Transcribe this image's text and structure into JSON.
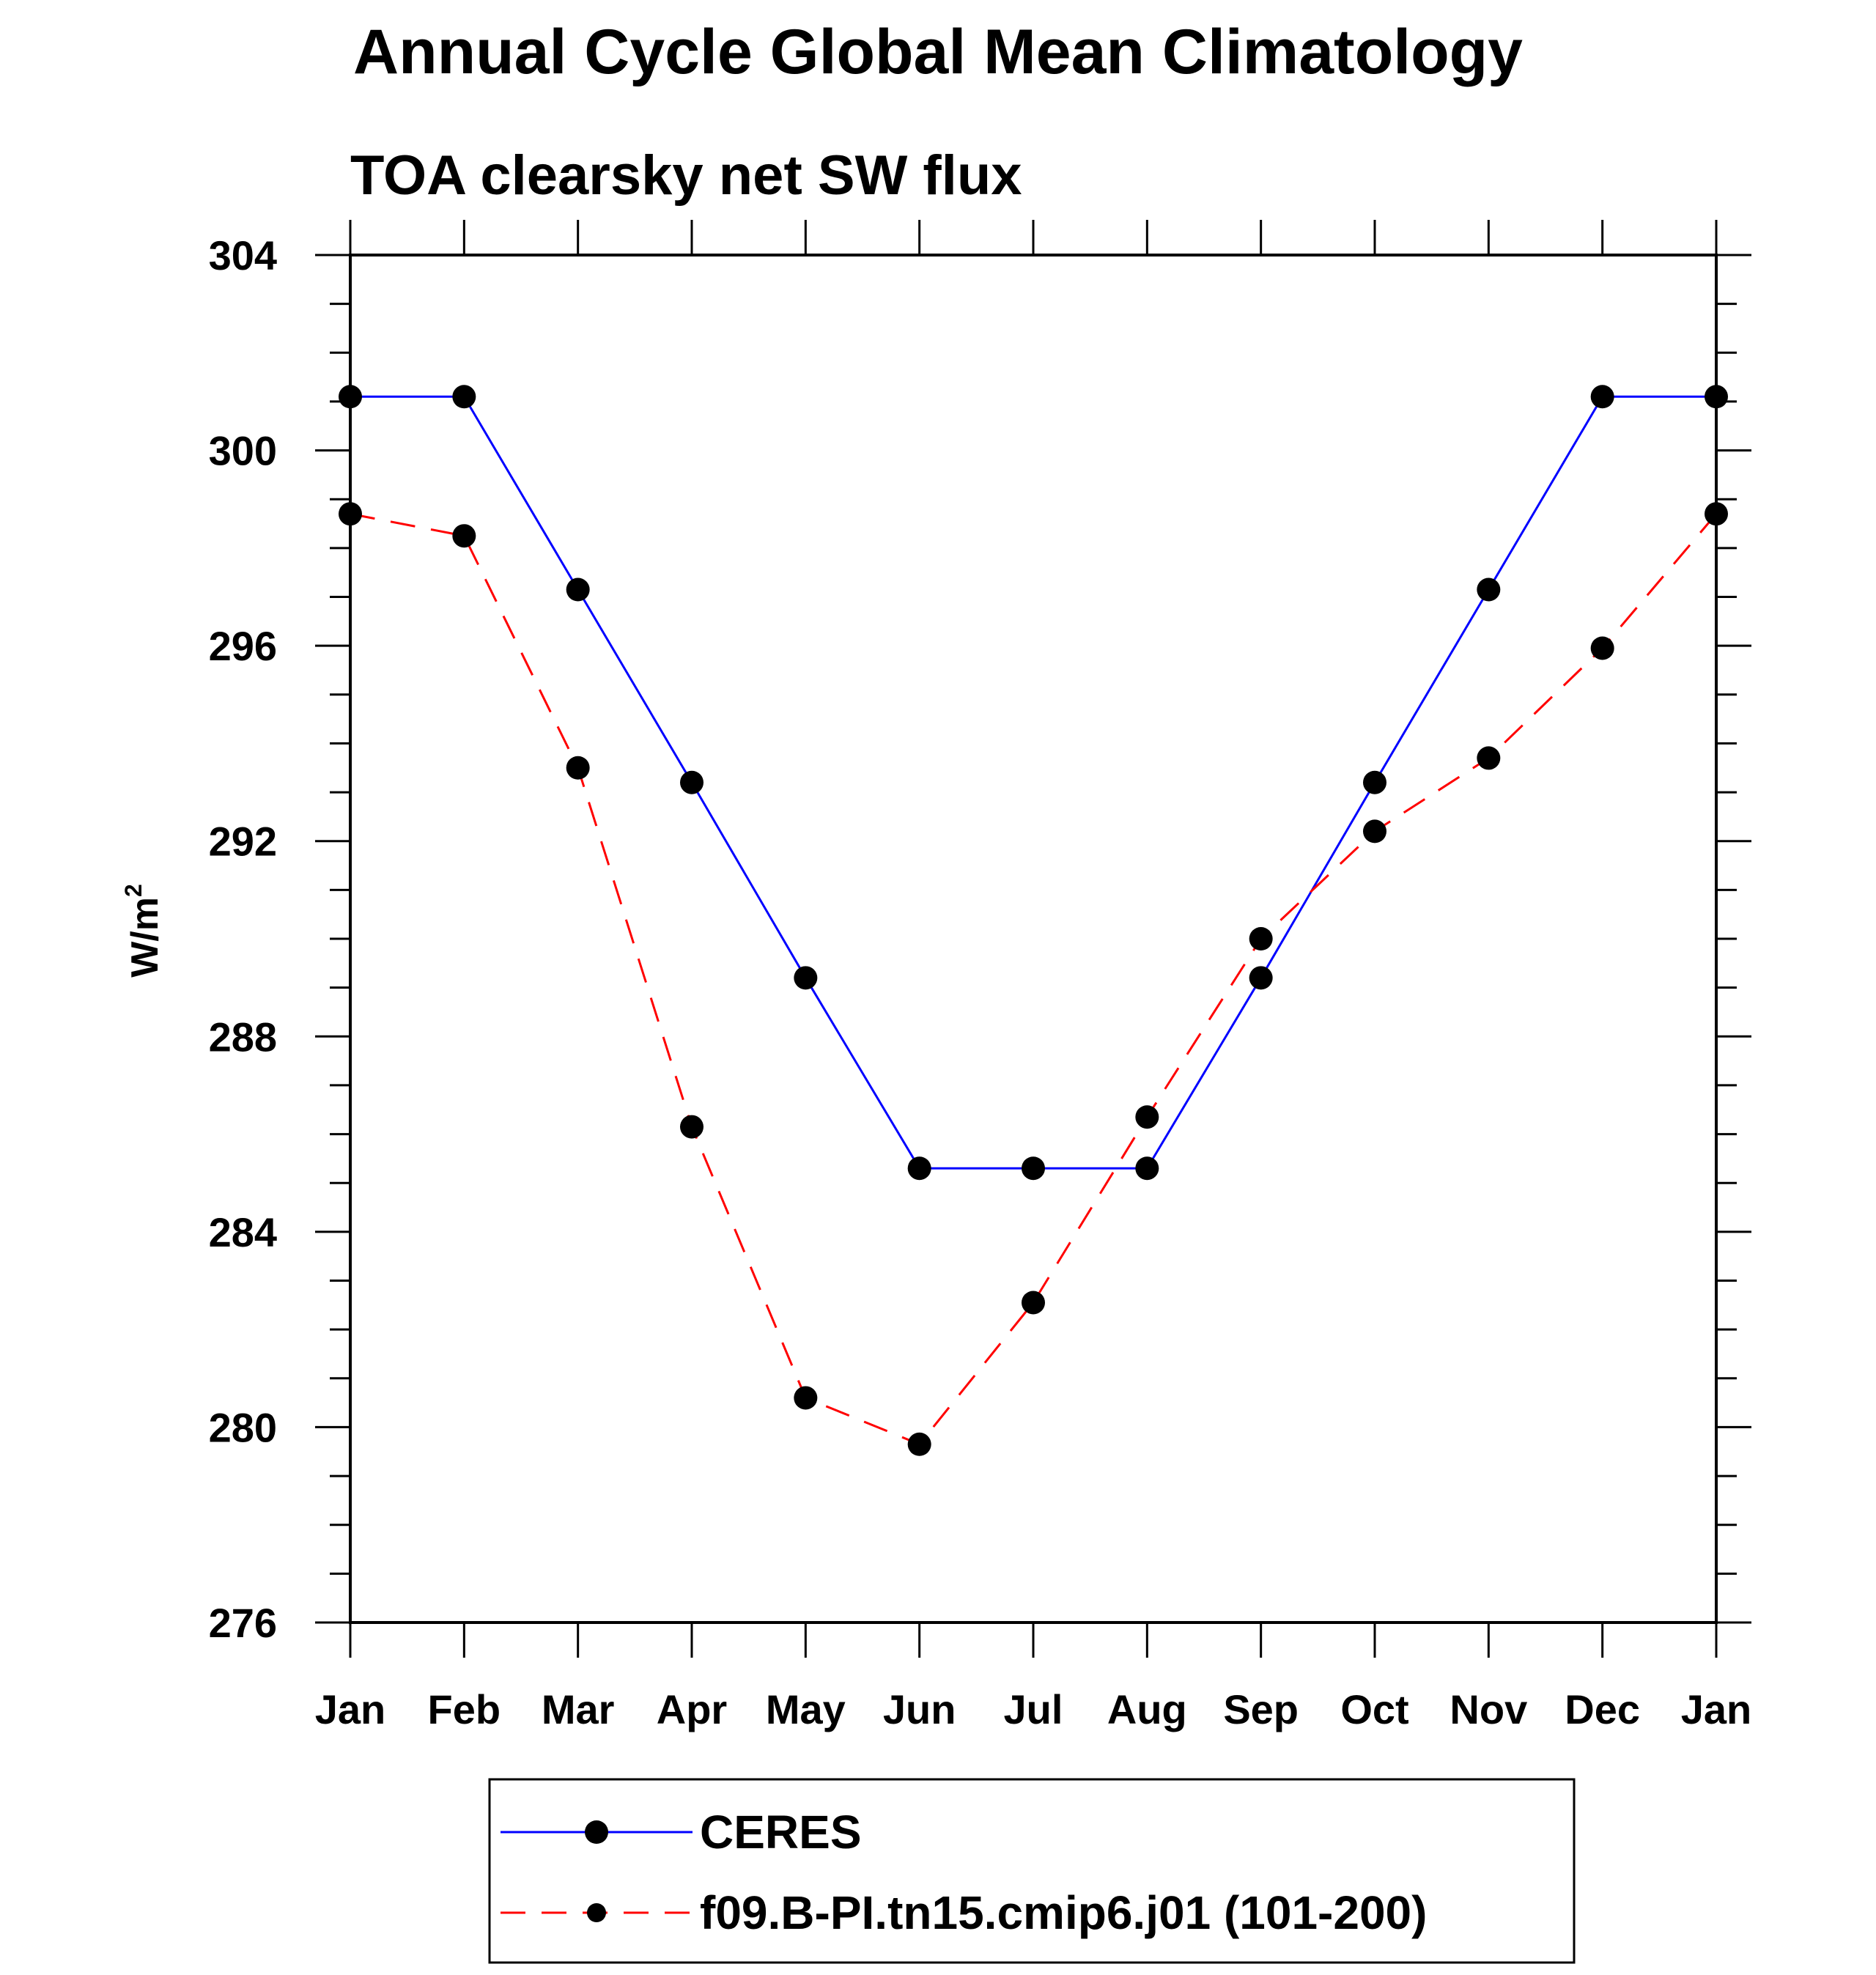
{
  "chart_data": {
    "type": "line",
    "title": "Annual Cycle Global Mean Climatology",
    "subtitle": "TOA clearsky net SW flux",
    "ylabel": "W/m",
    "ylabel_superscript": "2",
    "xlabel": "",
    "ylim": [
      276,
      304
    ],
    "yticks": [
      276,
      280,
      284,
      288,
      292,
      296,
      300,
      304
    ],
    "categories": [
      "Jan",
      "Feb",
      "Mar",
      "Apr",
      "May",
      "Jun",
      "Jul",
      "Aug",
      "Sep",
      "Oct",
      "Nov",
      "Dec",
      "Jan"
    ],
    "grid": false,
    "legend_position": "bottom",
    "series": [
      {
        "name": "CERES",
        "color": "#0000ff",
        "dash": "solid",
        "values": [
          301.1,
          301.1,
          297.15,
          293.2,
          289.2,
          285.3,
          285.3,
          285.3,
          289.2,
          293.2,
          297.15,
          301.1,
          301.1
        ]
      },
      {
        "name": "f09.B-PI.tn15.cmip6.j01 (101-200)",
        "color": "#ff0000",
        "dash": "dashed",
        "values": [
          298.7,
          298.25,
          293.5,
          286.15,
          280.6,
          279.65,
          282.55,
          286.35,
          290.0,
          292.2,
          293.7,
          295.95,
          298.7
        ]
      }
    ]
  }
}
